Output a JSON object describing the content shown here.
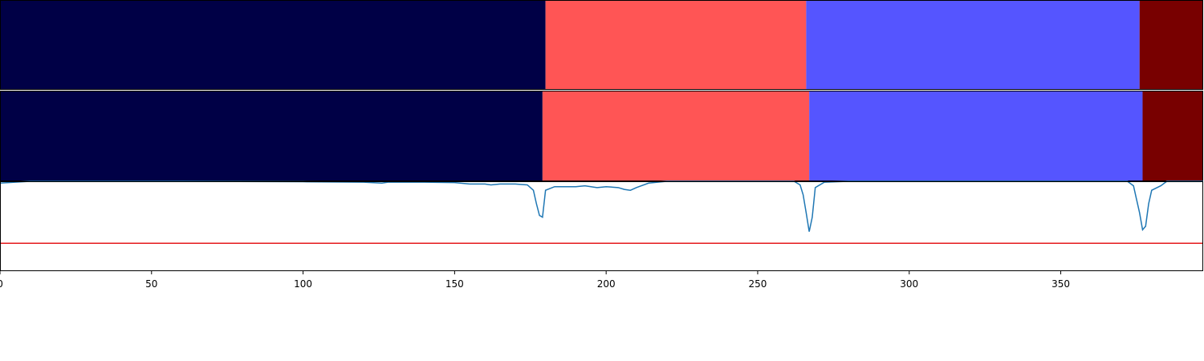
{
  "chart_data": [
    {
      "type": "segmentation-bar",
      "xlim": [
        0,
        397
      ],
      "segments": [
        {
          "start": 0,
          "end": 180,
          "color": "#000046"
        },
        {
          "start": 180,
          "end": 266,
          "color": "#ff5555"
        },
        {
          "start": 266,
          "end": 376,
          "color": "#5555ff"
        },
        {
          "start": 376,
          "end": 397,
          "color": "#780000"
        }
      ]
    },
    {
      "type": "segmentation-bar",
      "xlim": [
        0,
        397
      ],
      "segments": [
        {
          "start": 0,
          "end": 179,
          "color": "#000046"
        },
        {
          "start": 179,
          "end": 267,
          "color": "#ff5555"
        },
        {
          "start": 267,
          "end": 377,
          "color": "#5555ff"
        },
        {
          "start": 377,
          "end": 397,
          "color": "#780000"
        }
      ]
    },
    {
      "type": "line",
      "xlim": [
        0,
        397
      ],
      "ylim": [
        0,
        1
      ],
      "x_ticks": [
        0,
        50,
        100,
        150,
        200,
        250,
        300,
        350
      ],
      "x_tick_labels": [
        "0",
        "50",
        "100",
        "150",
        "200",
        "250",
        "300",
        "350"
      ],
      "grid": false,
      "series": [
        {
          "color": "#1f77b4",
          "points": [
            [
              0,
              0.98
            ],
            [
              5,
              0.99
            ],
            [
              10,
              1.0
            ],
            [
              30,
              1.0
            ],
            [
              60,
              1.0
            ],
            [
              100,
              0.995
            ],
            [
              120,
              0.99
            ],
            [
              126,
              0.98
            ],
            [
              128,
              0.99
            ],
            [
              140,
              0.99
            ],
            [
              150,
              0.985
            ],
            [
              155,
              0.97
            ],
            [
              160,
              0.97
            ],
            [
              162,
              0.96
            ],
            [
              165,
              0.97
            ],
            [
              170,
              0.97
            ],
            [
              174,
              0.96
            ],
            [
              176,
              0.9
            ],
            [
              177,
              0.75
            ],
            [
              178,
              0.62
            ],
            [
              179,
              0.6
            ],
            [
              180,
              0.9
            ],
            [
              183,
              0.94
            ],
            [
              190,
              0.94
            ],
            [
              193,
              0.95
            ],
            [
              197,
              0.93
            ],
            [
              200,
              0.94
            ],
            [
              204,
              0.93
            ],
            [
              206,
              0.91
            ],
            [
              208,
              0.9
            ],
            [
              210,
              0.93
            ],
            [
              214,
              0.98
            ],
            [
              220,
              1.0
            ],
            [
              250,
              1.0
            ],
            [
              262,
              1.0
            ],
            [
              264,
              0.96
            ],
            [
              265,
              0.85
            ],
            [
              266,
              0.65
            ],
            [
              267,
              0.44
            ],
            [
              268,
              0.6
            ],
            [
              269,
              0.93
            ],
            [
              272,
              0.99
            ],
            [
              280,
              1.0
            ],
            [
              300,
              1.0
            ],
            [
              340,
              1.0
            ],
            [
              372,
              1.0
            ],
            [
              374,
              0.95
            ],
            [
              375,
              0.8
            ],
            [
              376,
              0.65
            ],
            [
              377,
              0.46
            ],
            [
              378,
              0.5
            ],
            [
              379,
              0.75
            ],
            [
              380,
              0.9
            ],
            [
              383,
              0.95
            ],
            [
              385,
              1.0
            ],
            [
              397,
              1.0
            ]
          ]
        },
        {
          "color": "#e41a1c",
          "points": [
            [
              0,
              0.31
            ],
            [
              397,
              0.31
            ]
          ]
        }
      ]
    }
  ]
}
